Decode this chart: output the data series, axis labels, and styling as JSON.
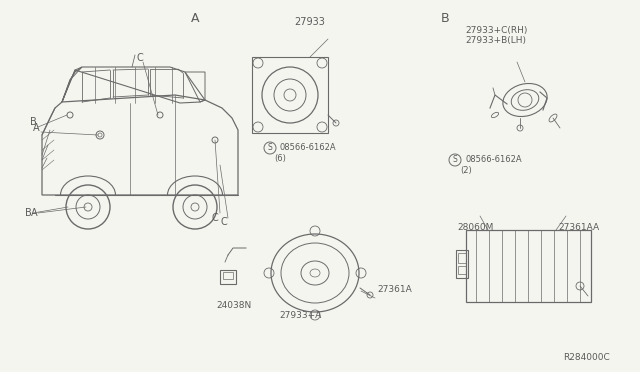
{
  "bg_color": "#f5f5f0",
  "line_color": "#6a6a6a",
  "text_color": "#5a5a5a",
  "dark_color": "#4a4a4a",
  "section_A": "A",
  "section_B": "B",
  "label_27933": "27933",
  "label_27933C": "27933+C(RH)",
  "label_27933B": "27933+B(LH)",
  "label_screw1": "08566-6162A",
  "label_screw1b": "(6)",
  "label_screw2": "08566-6162A",
  "label_screw2b": "(2)",
  "label_24038N": "24038N",
  "label_27933A": "27933+A",
  "label_27361A": "27361A",
  "label_28060M": "28060M",
  "label_27361AA": "27361AA",
  "label_ref": "R284000C",
  "label_A_car": "A",
  "label_B_car": "B",
  "label_C_car": "C"
}
